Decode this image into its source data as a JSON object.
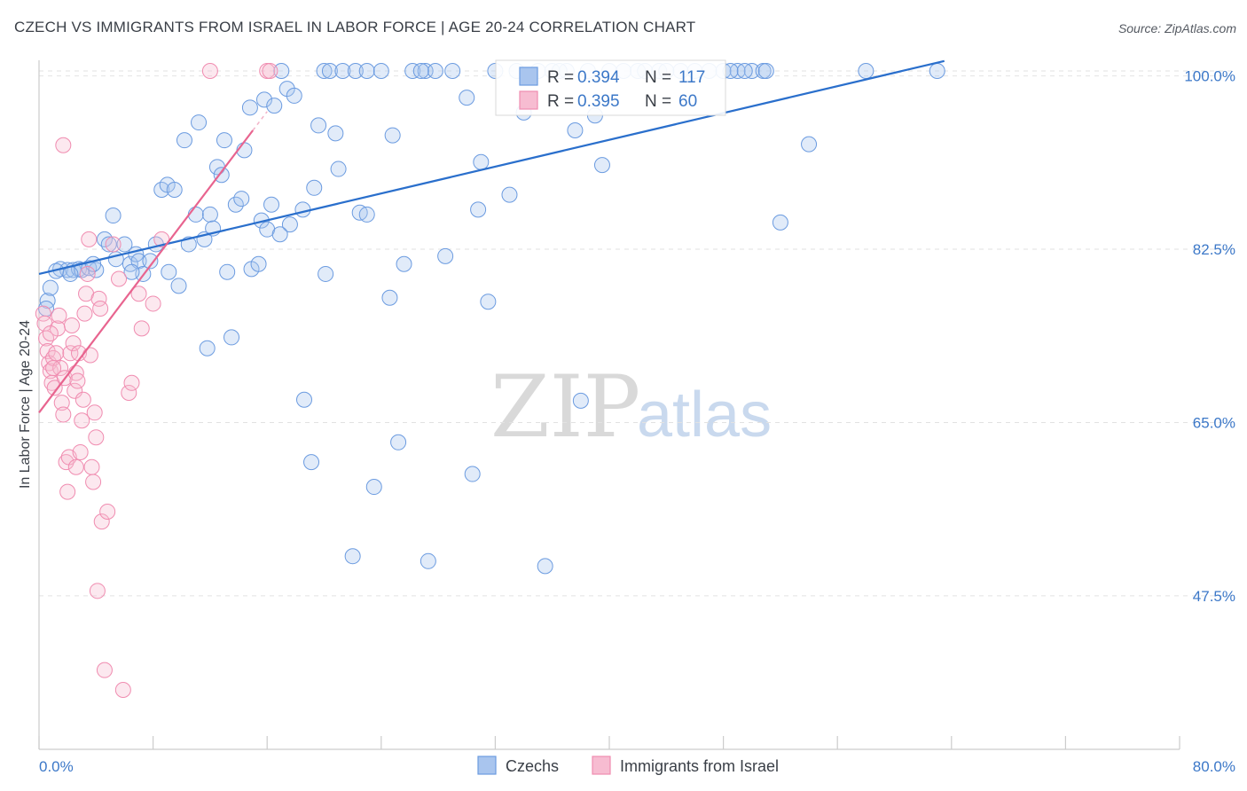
{
  "title": "CZECH VS IMMIGRANTS FROM ISRAEL IN LABOR FORCE | AGE 20-24 CORRELATION CHART",
  "source": "Source: ZipAtlas.com",
  "watermark": {
    "zip": "ZIP",
    "atlas": "atlas"
  },
  "colors": {
    "blue": "#6b9be0",
    "blue_line": "#2a6fcc",
    "pink": "#f08cb0",
    "pink_line": "#e8648f",
    "axis_text": "#3c78c8"
  },
  "chart_data": {
    "type": "scatter",
    "title": "CZECH VS IMMIGRANTS FROM ISRAEL IN LABOR FORCE | AGE 20-24 CORRELATION CHART",
    "ylabel": "In Labor Force | Age 20-24",
    "xlabel": "",
    "xlim": [
      0,
      80
    ],
    "ylim": [
      32,
      101
    ],
    "x_tick_labels": [
      "0.0%",
      "80.0%"
    ],
    "y_ticks": [
      47.5,
      65.0,
      82.5,
      100.0
    ],
    "y_tick_labels": [
      "47.5%",
      "65.0%",
      "82.5%",
      "100.0%"
    ],
    "legend": {
      "r_label": "R =",
      "n_label": "N =",
      "entries": [
        {
          "r": "0.394",
          "n": "117"
        },
        {
          "r": "0.395",
          "n": "60"
        }
      ]
    },
    "series": [
      {
        "name": "Czechs",
        "color": "#6b9be0",
        "trend": {
          "x": [
            0,
            63.5
          ],
          "y": [
            80.0,
            101.5
          ]
        },
        "points": [
          [
            0.6,
            77.3
          ],
          [
            0.8,
            78.6
          ],
          [
            1.5,
            80.5
          ],
          [
            2.0,
            80.4
          ],
          [
            2.4,
            80.4
          ],
          [
            2.8,
            80.5
          ],
          [
            3.0,
            80.4
          ],
          [
            3.5,
            80.6
          ],
          [
            4.0,
            80.4
          ],
          [
            4.6,
            83.5
          ],
          [
            4.9,
            83.0
          ],
          [
            5.4,
            81.5
          ],
          [
            5.2,
            85.9
          ],
          [
            6.0,
            83.0
          ],
          [
            6.4,
            81.0
          ],
          [
            6.8,
            82.0
          ],
          [
            7.0,
            81.3
          ],
          [
            7.3,
            80.0
          ],
          [
            7.8,
            81.3
          ],
          [
            8.2,
            83.0
          ],
          [
            8.6,
            88.5
          ],
          [
            9.0,
            89.0
          ],
          [
            9.1,
            80.2
          ],
          [
            9.5,
            88.5
          ],
          [
            9.8,
            78.8
          ],
          [
            10.5,
            83.0
          ],
          [
            10.2,
            93.5
          ],
          [
            11.0,
            86.0
          ],
          [
            11.2,
            95.3
          ],
          [
            11.6,
            83.5
          ],
          [
            11.8,
            72.5
          ],
          [
            12.0,
            86.0
          ],
          [
            12.5,
            90.8
          ],
          [
            12.8,
            90.0
          ],
          [
            13.0,
            93.5
          ],
          [
            13.2,
            80.2
          ],
          [
            13.5,
            73.6
          ],
          [
            13.8,
            87.0
          ],
          [
            14.2,
            87.6
          ],
          [
            14.4,
            92.5
          ],
          [
            14.8,
            96.8
          ],
          [
            14.9,
            80.5
          ],
          [
            15.4,
            81.0
          ],
          [
            15.6,
            85.4
          ],
          [
            15.8,
            97.6
          ],
          [
            16.3,
            87.0
          ],
          [
            16.0,
            84.5
          ],
          [
            16.5,
            97.0
          ],
          [
            17.0,
            100.5
          ],
          [
            17.4,
            98.7
          ],
          [
            17.6,
            85.0
          ],
          [
            17.9,
            98.0
          ],
          [
            18.5,
            86.5
          ],
          [
            18.6,
            67.3
          ],
          [
            19.1,
            61.0
          ],
          [
            19.3,
            88.7
          ],
          [
            19.6,
            95.0
          ],
          [
            20.0,
            100.5
          ],
          [
            20.1,
            80.0
          ],
          [
            20.4,
            100.5
          ],
          [
            20.8,
            94.2
          ],
          [
            21.0,
            90.6
          ],
          [
            21.3,
            100.5
          ],
          [
            22.0,
            51.5
          ],
          [
            22.2,
            100.5
          ],
          [
            22.5,
            86.2
          ],
          [
            23.0,
            100.5
          ],
          [
            23.5,
            58.5
          ],
          [
            23.0,
            86.0
          ],
          [
            24.0,
            100.5
          ],
          [
            24.6,
            77.6
          ],
          [
            24.8,
            94.0
          ],
          [
            25.2,
            63.0
          ],
          [
            25.6,
            81.0
          ],
          [
            26.2,
            100.5
          ],
          [
            27.1,
            100.5
          ],
          [
            27.3,
            51.0
          ],
          [
            27.8,
            100.5
          ],
          [
            28.5,
            81.8
          ],
          [
            29.0,
            100.5
          ],
          [
            30.0,
            97.8
          ],
          [
            30.4,
            59.8
          ],
          [
            30.8,
            86.5
          ],
          [
            31.0,
            91.3
          ],
          [
            31.5,
            77.2
          ],
          [
            32.0,
            100.5
          ],
          [
            33.0,
            88.0
          ],
          [
            33.5,
            100.5
          ],
          [
            34.0,
            96.3
          ],
          [
            35.0,
            100.5
          ],
          [
            35.5,
            50.5
          ],
          [
            36.0,
            100.5
          ],
          [
            37.0,
            100.5
          ],
          [
            37.6,
            94.5
          ],
          [
            38.0,
            67.2
          ],
          [
            38.5,
            100.5
          ],
          [
            39.0,
            96.0
          ],
          [
            39.5,
            91.0
          ],
          [
            40.0,
            100.5
          ],
          [
            41.0,
            100.5
          ],
          [
            42.0,
            100.5
          ],
          [
            42.5,
            100.5
          ],
          [
            43.5,
            100.5
          ],
          [
            45.0,
            100.5
          ],
          [
            46.0,
            100.5
          ],
          [
            47.0,
            100.5
          ],
          [
            48.0,
            100.5
          ],
          [
            49.0,
            100.5
          ],
          [
            50.0,
            100.5
          ],
          [
            50.8,
            100.5
          ],
          [
            51.0,
            100.5
          ],
          [
            52.0,
            85.2
          ],
          [
            54.0,
            93.1
          ],
          [
            58.0,
            100.5
          ],
          [
            63.0,
            100.5
          ],
          [
            0.5,
            76.5
          ],
          [
            1.2,
            80.3
          ],
          [
            2.2,
            80.0
          ],
          [
            3.8,
            81.0
          ],
          [
            6.5,
            80.2
          ],
          [
            12.2,
            84.6
          ],
          [
            16.9,
            84.0
          ],
          [
            26.8,
            100.5
          ],
          [
            36.5,
            100.5
          ],
          [
            44.0,
            100.5
          ],
          [
            48.5,
            100.5
          ],
          [
            49.5,
            100.5
          ]
        ]
      },
      {
        "name": "Immigrants from Israel",
        "color": "#f08cb0",
        "trend": {
          "x": [
            0,
            15.0
          ],
          "y": [
            66.0,
            94.5
          ]
        },
        "points": [
          [
            0.3,
            76.0
          ],
          [
            0.4,
            75.0
          ],
          [
            0.5,
            73.5
          ],
          [
            0.6,
            72.2
          ],
          [
            0.7,
            71.0
          ],
          [
            0.8,
            70.2
          ],
          [
            0.9,
            69.0
          ],
          [
            1.0,
            71.5
          ],
          [
            1.1,
            68.5
          ],
          [
            1.2,
            72.0
          ],
          [
            1.3,
            74.5
          ],
          [
            1.4,
            75.8
          ],
          [
            1.5,
            70.5
          ],
          [
            1.6,
            67.0
          ],
          [
            1.7,
            65.8
          ],
          [
            1.8,
            69.5
          ],
          [
            1.9,
            61.0
          ],
          [
            2.0,
            58.0
          ],
          [
            2.1,
            61.5
          ],
          [
            2.2,
            72.0
          ],
          [
            2.3,
            74.8
          ],
          [
            2.4,
            73.0
          ],
          [
            2.5,
            68.2
          ],
          [
            2.6,
            70.0
          ],
          [
            2.7,
            69.2
          ],
          [
            2.8,
            72.0
          ],
          [
            2.9,
            62.0
          ],
          [
            3.0,
            65.2
          ],
          [
            3.1,
            67.3
          ],
          [
            3.2,
            76.0
          ],
          [
            3.3,
            78.0
          ],
          [
            3.4,
            80.0
          ],
          [
            3.5,
            83.5
          ],
          [
            3.6,
            71.8
          ],
          [
            3.7,
            60.5
          ],
          [
            3.8,
            59.0
          ],
          [
            3.9,
            66.0
          ],
          [
            4.0,
            63.5
          ],
          [
            4.1,
            48.0
          ],
          [
            4.2,
            77.5
          ],
          [
            4.3,
            76.5
          ],
          [
            4.4,
            55.0
          ],
          [
            4.6,
            40.0
          ],
          [
            4.8,
            56.0
          ],
          [
            5.2,
            83.0
          ],
          [
            5.6,
            79.5
          ],
          [
            5.9,
            38.0
          ],
          [
            6.3,
            68.0
          ],
          [
            6.5,
            69.0
          ],
          [
            7.0,
            78.0
          ],
          [
            7.2,
            74.5
          ],
          [
            8.0,
            77.0
          ],
          [
            1.7,
            93.0
          ],
          [
            8.6,
            83.5
          ],
          [
            12.0,
            100.5
          ],
          [
            16.0,
            100.5
          ],
          [
            16.2,
            100.5
          ],
          [
            1.0,
            70.5
          ],
          [
            0.8,
            74.0
          ],
          [
            2.6,
            60.5
          ]
        ]
      }
    ]
  },
  "bottom_legend": [
    {
      "label": "Czechs"
    },
    {
      "label": "Immigrants from Israel"
    }
  ]
}
